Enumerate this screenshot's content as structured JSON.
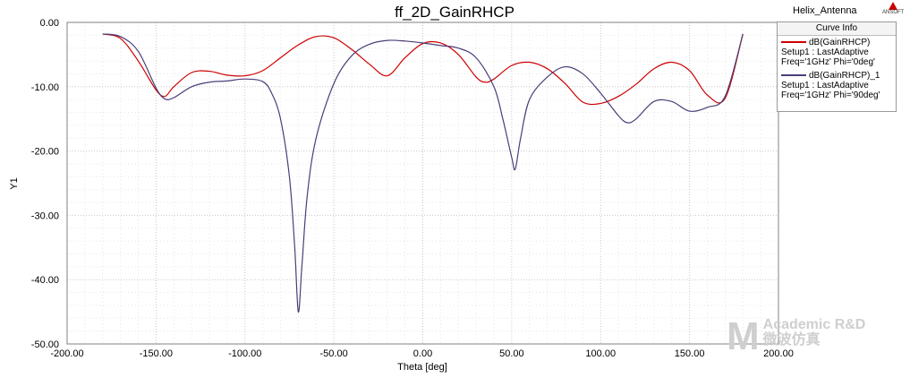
{
  "report": {
    "project_label": "Helix_Antenna",
    "logo_text": "ANSOFT"
  },
  "watermark": {
    "line1": "Academic R&D",
    "line2": "微波仿真",
    "mark": "M"
  },
  "colors": {
    "series1": "#cc0000",
    "series2": "#4b3d78",
    "grid": "#c8c8c8"
  },
  "chart_data": {
    "type": "line",
    "title": "ff_2D_GainRHCP",
    "xlabel": "Theta [deg]",
    "ylabel": "Y1",
    "xlim": [
      -200,
      200
    ],
    "ylim": [
      -50,
      0
    ],
    "xticks": [
      "-200.00",
      "-150.00",
      "-100.00",
      "-50.00",
      "0.00",
      "50.00",
      "100.00",
      "150.00",
      "200.00"
    ],
    "yticks": [
      "0.00",
      "-10.00",
      "-20.00",
      "-30.00",
      "-40.00",
      "-50.00"
    ],
    "grid": true,
    "legend": {
      "title": "Curve Info",
      "placement": "top-right"
    },
    "series": [
      {
        "name": "dB(GainRHCP)",
        "setup": "Setup1 : LastAdaptive",
        "params": "Freq='1GHz' Phi='0deg'",
        "x": [
          -180,
          -170,
          -160,
          -150,
          -145,
          -140,
          -130,
          -120,
          -110,
          -100,
          -90,
          -80,
          -70,
          -60,
          -50,
          -40,
          -30,
          -20,
          -10,
          0,
          10,
          20,
          30,
          35,
          40,
          50,
          60,
          70,
          80,
          90,
          100,
          110,
          120,
          130,
          140,
          150,
          160,
          170,
          180
        ],
        "y": [
          -1.8,
          -2.5,
          -6.0,
          -10.5,
          -11.5,
          -10.0,
          -7.8,
          -7.6,
          -8.2,
          -8.3,
          -7.5,
          -5.5,
          -3.5,
          -2.2,
          -2.4,
          -4.2,
          -6.5,
          -8.3,
          -5.5,
          -3.3,
          -3.2,
          -5.0,
          -8.5,
          -9.3,
          -8.8,
          -6.7,
          -6.2,
          -7.2,
          -9.5,
          -12.4,
          -12.6,
          -11.5,
          -9.6,
          -7.2,
          -6.2,
          -7.5,
          -11.3,
          -11.8,
          -1.8
        ]
      },
      {
        "name": "dB(GainRHCP)_1",
        "setup": "Setup1 : LastAdaptive",
        "params": "Freq='1GHz' Phi='90deg'",
        "x": [
          -180,
          -170,
          -160,
          -150,
          -145,
          -140,
          -130,
          -120,
          -110,
          -100,
          -90,
          -85,
          -80,
          -75,
          -72,
          -70,
          -68,
          -65,
          -60,
          -50,
          -40,
          -30,
          -20,
          -10,
          0,
          10,
          20,
          30,
          40,
          45,
          50,
          52,
          55,
          60,
          70,
          80,
          90,
          100,
          110,
          115,
          120,
          130,
          140,
          150,
          160,
          170,
          180
        ],
        "y": [
          -1.8,
          -2.2,
          -4.5,
          -10.2,
          -11.9,
          -11.7,
          -10.0,
          -9.3,
          -9.1,
          -8.8,
          -9.2,
          -11.0,
          -15.0,
          -24.0,
          -35.0,
          -45.0,
          -38.0,
          -27.0,
          -18.0,
          -9.5,
          -5.2,
          -3.4,
          -2.8,
          -2.9,
          -3.2,
          -3.6,
          -4.0,
          -5.5,
          -10.0,
          -15.0,
          -21.0,
          -22.8,
          -18.0,
          -12.0,
          -8.5,
          -6.9,
          -8.0,
          -11.0,
          -14.5,
          -15.6,
          -15.0,
          -12.3,
          -12.3,
          -13.8,
          -13.2,
          -11.5,
          -1.8
        ]
      }
    ]
  }
}
